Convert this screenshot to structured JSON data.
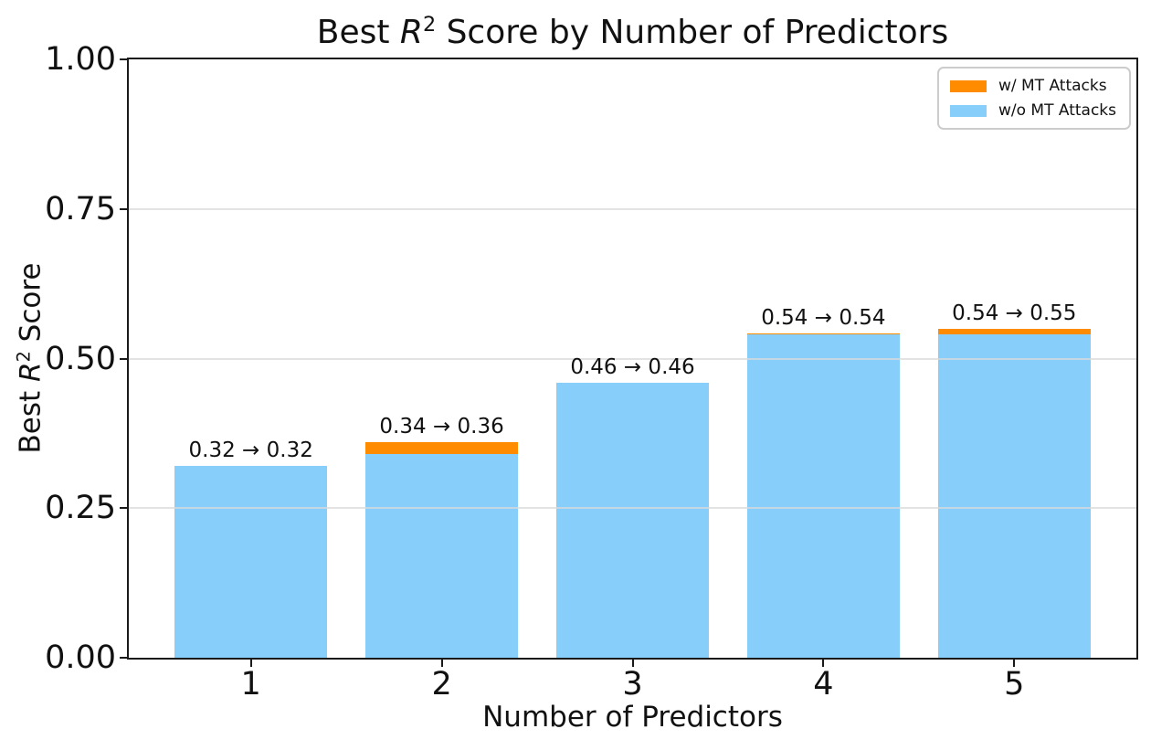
{
  "title": {
    "pre": "Best ",
    "math_base": "R",
    "math_sup": "2",
    "post": " Score by Number of Predictors"
  },
  "axes": {
    "x_label": "Number of Predictors",
    "y_label": {
      "pre": "Best ",
      "math_base": "R",
      "math_sup": "2",
      "post": " Score"
    },
    "x_tick_labels": [
      "1",
      "2",
      "3",
      "4",
      "5"
    ],
    "y_tick_labels": [
      "0.00",
      "0.25",
      "0.50",
      "0.75",
      "1.00"
    ]
  },
  "legend": {
    "items": [
      {
        "label": "w/ MT Attacks",
        "color": "#FF8C00"
      },
      {
        "label": "w/o MT Attacks",
        "color": "#87CEFA"
      }
    ]
  },
  "colors": {
    "bar_blue": "#87CEFA",
    "bar_orange": "#FF8C00",
    "grid": "#d9d9d9",
    "spine": "#1a1a1a"
  },
  "chart_data": {
    "type": "bar",
    "stacked": true,
    "title": "Best R^2 Score by Number of Predictors",
    "xlabel": "Number of Predictors",
    "ylabel": "Best R^2 Score",
    "categories": [
      1,
      2,
      3,
      4,
      5
    ],
    "series": [
      {
        "name": "w/o MT Attacks",
        "color": "#87CEFA",
        "values": [
          0.32,
          0.34,
          0.46,
          0.54,
          0.54
        ]
      },
      {
        "name": "w/ MT Attacks",
        "color": "#FF8C00",
        "values": [
          0.0,
          0.02,
          0.0,
          0.002,
          0.01
        ]
      }
    ],
    "bar_totals": [
      0.32,
      0.36,
      0.46,
      0.542,
      0.55
    ],
    "bar_labels": [
      "0.32 → 0.32",
      "0.34 → 0.36",
      "0.46 → 0.46",
      "0.54 → 0.54",
      "0.54 → 0.55"
    ],
    "ylim": [
      0,
      1
    ],
    "yticks": [
      0,
      0.25,
      0.5,
      0.75,
      1
    ],
    "xlim": [
      0.36,
      5.64
    ],
    "bar_width": 0.8,
    "grid": "horizontal",
    "legend_position": "upper right"
  }
}
